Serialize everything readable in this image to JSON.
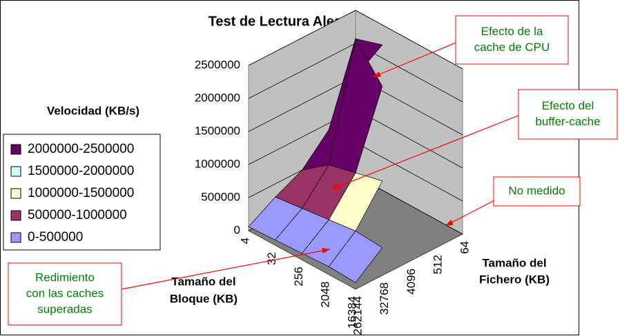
{
  "chart_data": {
    "type": "surface3d",
    "title": "Test de Lectura Aleatoria",
    "z_label": "Velocidad (KB/s)",
    "x_label": [
      "Tamaño del",
      "Bloque (KB)"
    ],
    "y_label": [
      "Tamaño del",
      "Fichero (KB)"
    ],
    "x_categories": [
      "4",
      "32",
      "256",
      "2048",
      "16384"
    ],
    "y_categories": [
      "64",
      "512",
      "4096",
      "32768",
      "262144"
    ],
    "values": [
      [
        1500000,
        900000,
        500000,
        300000,
        60000
      ],
      [
        2200000,
        2500000,
        800000,
        350000,
        80000
      ],
      [
        null,
        2000000,
        900000,
        400000,
        100000
      ],
      [
        null,
        null,
        1000000,
        450000,
        120000
      ],
      [
        null,
        null,
        null,
        420000,
        100000
      ]
    ],
    "zlim": [
      0,
      2500000
    ],
    "zticks": [
      0,
      500000,
      1000000,
      1500000,
      2000000,
      2500000
    ],
    "series": [
      {
        "name": "2000000-2500000",
        "color": "#660066"
      },
      {
        "name": "1500000-2000000",
        "color": "#ccffff"
      },
      {
        "name": "1000000-1500000",
        "color": "#ffffcc"
      },
      {
        "name": "500000-1000000",
        "color": "#993366"
      },
      {
        "name": "0-500000",
        "color": "#9999ff"
      }
    ],
    "legend": "left",
    "annotations": [
      [
        "Efecto de la",
        "cache de CPU"
      ],
      [
        "Efecto del",
        "buffer-cache"
      ],
      [
        "No medido"
      ],
      [
        "Redimiento",
        "con las caches",
        "superadas"
      ]
    ]
  }
}
